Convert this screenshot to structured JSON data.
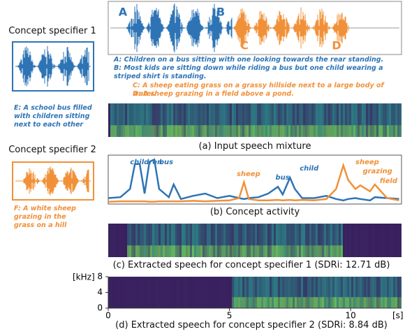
{
  "specifiers": [
    {
      "title": "Concept specifier 1",
      "caption": "E: A school bus filled with children sitting next to each other",
      "color": "#2e74b5"
    },
    {
      "title": "Concept specifier 2",
      "caption": "F: A white sheep grazing in the grass on a hill",
      "color": "#f0913a"
    }
  ],
  "mixture": {
    "markers": [
      "A",
      "B",
      "C",
      "D"
    ],
    "descriptions": [
      "A: Children on a bus sitting with one looking towards the rear standing.",
      "B: Most kids are sitting down while riding a bus but one child wearing a striped shirt is standing.",
      "C: A sheep eating grass on a grassy hillside next to a large body of water.",
      "D: A sheep grazing in a field above a pond."
    ]
  },
  "captions": [
    "(a) Input speech mixture",
    "(b) Concept activity",
    "(c) Extracted speech for concept specifier 1 (SDRi: 12.71 dB)",
    "(d) Extracted speech for concept specifier 2 (SDRi: 8.84 dB)"
  ],
  "activity": {
    "x": [
      0,
      0.5,
      0.9,
      1.1,
      1.3,
      1.5,
      1.7,
      1.9,
      2.1,
      2.5,
      2.7,
      3,
      3.5,
      4,
      4.5,
      5,
      5.4,
      5.6,
      5.8,
      6.2,
      6.6,
      7,
      7.2,
      7.5,
      7.7,
      8,
      8.5,
      9,
      9.4,
      9.7,
      9.9,
      10.2,
      10.4,
      10.8,
      11,
      11.5,
      12
    ],
    "series": [
      {
        "color": "#2e74b5",
        "values": [
          0.1,
          0.12,
          0.3,
          0.85,
          0.85,
          0.2,
          0.9,
          0.95,
          0.3,
          0.12,
          0.4,
          0.08,
          0.15,
          0.2,
          0.1,
          0.15,
          0.1,
          0.08,
          0.1,
          0.12,
          0.2,
          0.35,
          0.18,
          0.55,
          0.3,
          0.1,
          0.1,
          0.15,
          0.08,
          0.05,
          0.08,
          0.1,
          0.08,
          0.05,
          0.12,
          0.1,
          0.08
        ]
      },
      {
        "color": "#f0913a",
        "values": [
          0.02,
          0.03,
          0.03,
          0.03,
          0.03,
          0.03,
          0.02,
          0.02,
          0.03,
          0.03,
          0.03,
          0.03,
          0.04,
          0.03,
          0.04,
          0.05,
          0.1,
          0.45,
          0.08,
          0.05,
          0.05,
          0.06,
          0.05,
          0.06,
          0.05,
          0.06,
          0.05,
          0.08,
          0.3,
          0.82,
          0.5,
          0.3,
          0.38,
          0.25,
          0.4,
          0.1,
          0.05
        ]
      }
    ],
    "annotations": [
      {
        "text": "children",
        "x": 0.9,
        "color": "#2e74b5"
      },
      {
        "text": "bus",
        "x": 2.1,
        "color": "#2e74b5"
      },
      {
        "text": "sheep",
        "x": 5.3,
        "color": "#f0913a"
      },
      {
        "text": "bus",
        "x": 6.9,
        "color": "#2e74b5"
      },
      {
        "text": "child",
        "x": 7.9,
        "color": "#2e74b5"
      },
      {
        "text": "sheep",
        "x": 10.2,
        "color": "#f0913a"
      },
      {
        "text": "grazing",
        "x": 10.5,
        "color": "#f0913a"
      },
      {
        "text": "field",
        "x": 11.2,
        "color": "#f0913a"
      }
    ]
  },
  "spectrogram_axis": {
    "y_label": "[kHz]",
    "ylim": [
      0,
      8
    ],
    "yticks": [
      0,
      4,
      8
    ],
    "x_label": "[s]",
    "xlim": [
      0,
      12.1
    ],
    "xticks": [
      0,
      5,
      10
    ]
  }
}
